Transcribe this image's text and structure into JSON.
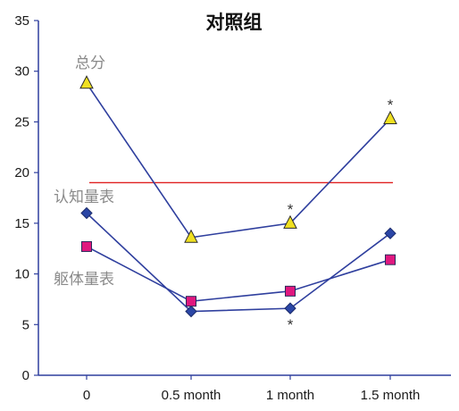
{
  "chart_data": {
    "type": "line",
    "title": "对照组",
    "categories": [
      "0",
      "0.5 month",
      "1 month",
      "1.5 month"
    ],
    "ylim": [
      0,
      35
    ],
    "yticks": [
      0,
      5,
      10,
      15,
      20,
      25,
      30,
      35
    ],
    "grid": false,
    "series": [
      {
        "name": "总分",
        "values": [
          28.8,
          13.6,
          15.0,
          25.3
        ],
        "marker": "triangle",
        "fill": "#f0e020",
        "stroke": "#2f3f9e"
      },
      {
        "name": "认知量表",
        "values": [
          16.0,
          6.3,
          6.6,
          14.0
        ],
        "marker": "diamond",
        "fill": "#2b46a6",
        "stroke": "#2f3f9e"
      },
      {
        "name": "躯体量表",
        "values": [
          12.7,
          7.3,
          8.3,
          11.4
        ],
        "marker": "square",
        "fill": "#e0187f",
        "stroke": "#2f3f9e"
      }
    ],
    "reference_line": {
      "value": 19,
      "color": "#e02020"
    },
    "annotations": [
      {
        "text": "*",
        "category": "1 month",
        "series": "总分",
        "position": "above"
      },
      {
        "text": "*",
        "category": "1.5 month",
        "series": "总分",
        "position": "above"
      },
      {
        "text": "*",
        "category": "1 month",
        "series": "认知量表",
        "position": "below"
      }
    ],
    "colors": {
      "axis": "#2f3f9e",
      "line": "#2f3f9e"
    }
  }
}
